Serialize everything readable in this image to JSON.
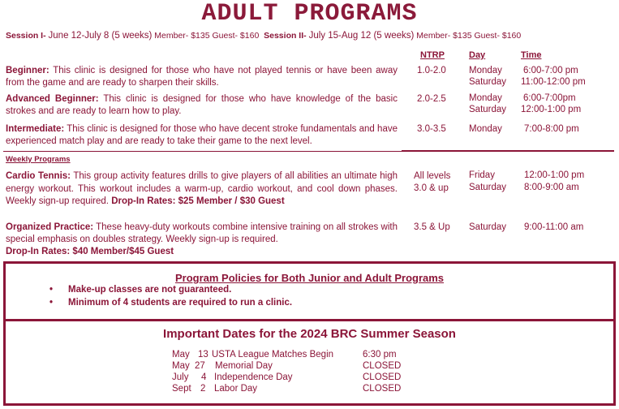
{
  "title": "ADULT PROGRAMS",
  "sessions": {
    "s1_label": "Session I-",
    "s1_dates": "June 12-July 8 (5 weeks)",
    "s1_prices": "Member- $135 Guest- $160",
    "s2_label": "Session II-",
    "s2_dates": "July 15-Aug 12 (5 weeks)",
    "s2_prices": "Member- $135 Guest- $160"
  },
  "headers": {
    "ntrp": "NTRP",
    "day": "Day",
    "time": "Time"
  },
  "clinics": [
    {
      "name": "Beginner:",
      "desc": "This clinic is designed for those who have not played tennis or have been away from the game and are ready to sharpen their skills.",
      "ntrp": "1.0-2.0",
      "days": [
        "Monday",
        "Saturday"
      ],
      "times": [
        "6:00-7:00 pm",
        "11:00-12:00 pm"
      ]
    },
    {
      "name": "Advanced Beginner:",
      "desc": "This clinic is designed for those who have knowledge of the basic strokes and are ready to learn how to play.",
      "ntrp": "2.0-2.5",
      "days": [
        "Monday",
        "Saturday"
      ],
      "times": [
        "6:00-7:00pm",
        "12:00-1:00 pm"
      ]
    },
    {
      "name": "Intermediate:",
      "desc": "This clinic is designed for those who have decent stroke fundamentals and have experienced match play and are ready to take their game to the next level.",
      "ntrp": "3.0-3.5",
      "days": [
        "Monday"
      ],
      "times": [
        "7:00-8:00 pm"
      ]
    }
  ],
  "weekly_label": "Weekly Programs",
  "weekly": [
    {
      "name": "Cardio Tennis:",
      "desc": "This group activity features drills to give players of all abilities an ultimate high energy workout. This workout includes a warm-up, cardio workout, and cool down phases. Weekly sign-up required.",
      "rates": "Drop-In Rates:  $25 Member / $30 Guest",
      "ntrp": [
        "All levels",
        "3.0 & up"
      ],
      "days": [
        "Friday",
        "Saturday"
      ],
      "times": [
        "12:00-1:00 pm",
        "8:00-9:00 am"
      ]
    },
    {
      "name": "Organized Practice:",
      "desc": "These heavy-duty workouts combine intensive training on all strokes with special emphasis on doubles strategy. Weekly sign-up is required.",
      "rates": "Drop-In Rates: $40 Member/$45 Guest",
      "ntrp": [
        "3.5 & Up"
      ],
      "days": [
        "Saturday"
      ],
      "times": [
        "9:00-11:00 am"
      ]
    }
  ],
  "policies": {
    "title": "Program Policies for Both Junior and Adult Programs",
    "items": [
      "Make-up classes are not guaranteed.",
      "Minimum of 4 students are required to run a clinic."
    ]
  },
  "dates": {
    "title": "Important Dates for the 2024 BRC Summer Season",
    "rows": [
      {
        "month": "May",
        "day": "13",
        "event": "USTA League Matches Begin",
        "status": "6:30 pm"
      },
      {
        "month": "May",
        "day": "27",
        "event": "Memorial Day",
        "status": "CLOSED"
      },
      {
        "month": "July",
        "day": "4",
        "event": "Independence Day",
        "status": "CLOSED"
      },
      {
        "month": "Sept",
        "day": "2",
        "event": "Labor Day",
        "status": "CLOSED"
      }
    ]
  },
  "colors": {
    "text": "#8b1538"
  }
}
